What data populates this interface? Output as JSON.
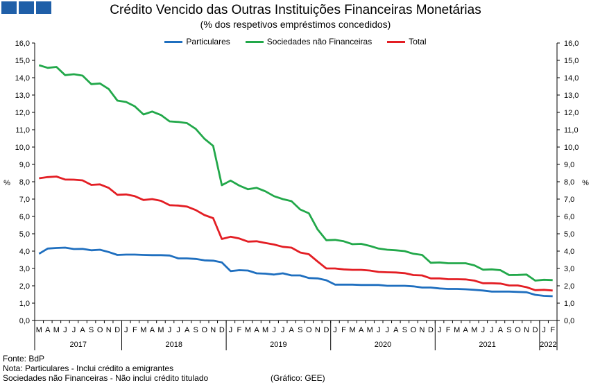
{
  "header": {
    "logo": "logo-squares",
    "title": "Crédito Vencido das Outras Instituições Financeiras Monetárias",
    "subtitle": "(% dos respetivos empréstimos concedidos)"
  },
  "footer": {
    "source": "Fonte: BdP",
    "note1": "Nota: Particulares - Inclui crédito a emigrantes",
    "note2": "Sociedades não Financeiras - Não inclui crédito titulado",
    "credit": "(Gráfico: GEE)"
  },
  "chart_data": {
    "type": "line",
    "title": "Crédito Vencido das Outras Instituições Financeiras Monetárias",
    "subtitle": "(% dos respetivos empréstimos concedidos)",
    "ylabel_left": "%",
    "ylabel_right": "%",
    "ylim": [
      0,
      16
    ],
    "yticks": [
      "0,0",
      "1,0",
      "2,0",
      "3,0",
      "4,0",
      "5,0",
      "6,0",
      "7,0",
      "8,0",
      "9,0",
      "10,0",
      "11,0",
      "12,0",
      "13,0",
      "14,0",
      "15,0",
      "16,0"
    ],
    "grid": false,
    "legend_position": "top-center",
    "month_labels": [
      "M",
      "A",
      "M",
      "J",
      "J",
      "A",
      "S",
      "O",
      "N",
      "D",
      "J",
      "F",
      "M",
      "A",
      "M",
      "J",
      "J",
      "A",
      "S",
      "O",
      "N",
      "D",
      "J",
      "F",
      "M",
      "A",
      "M",
      "J",
      "J",
      "A",
      "S",
      "O",
      "N",
      "D",
      "J",
      "F",
      "M",
      "A",
      "M",
      "J",
      "J",
      "A",
      "S",
      "O",
      "N",
      "D",
      "J",
      "F",
      "M",
      "A",
      "M",
      "J",
      "J",
      "A",
      "S",
      "O",
      "N",
      "D",
      "J",
      "F"
    ],
    "years": [
      {
        "label": "2017",
        "start": 0,
        "end": 9
      },
      {
        "label": "2018",
        "start": 10,
        "end": 21
      },
      {
        "label": "2019",
        "start": 22,
        "end": 33
      },
      {
        "label": "2020",
        "start": 34,
        "end": 45
      },
      {
        "label": "2021",
        "start": 46,
        "end": 57
      },
      {
        "label": "2022",
        "start": 58,
        "end": 59
      }
    ],
    "series": [
      {
        "name": "Particulares",
        "color": "#1f6fbf",
        "values": [
          3.85,
          4.15,
          4.18,
          4.2,
          4.12,
          4.13,
          4.05,
          4.08,
          3.95,
          3.78,
          3.8,
          3.8,
          3.78,
          3.77,
          3.77,
          3.75,
          3.58,
          3.58,
          3.55,
          3.47,
          3.45,
          3.35,
          2.85,
          2.9,
          2.88,
          2.72,
          2.7,
          2.65,
          2.72,
          2.6,
          2.6,
          2.45,
          2.43,
          2.32,
          2.07,
          2.07,
          2.07,
          2.05,
          2.05,
          2.05,
          2.0,
          2.0,
          2.0,
          1.97,
          1.9,
          1.9,
          1.85,
          1.82,
          1.82,
          1.8,
          1.77,
          1.73,
          1.67,
          1.67,
          1.67,
          1.65,
          1.63,
          1.48,
          1.42,
          1.4
        ]
      },
      {
        "name": "Sociedades não Financeiras",
        "color": "#22a84a",
        "values": [
          14.72,
          14.57,
          14.62,
          14.15,
          14.2,
          14.12,
          13.63,
          13.67,
          13.35,
          12.68,
          12.6,
          12.35,
          11.88,
          12.05,
          11.85,
          11.48,
          11.45,
          11.38,
          11.05,
          10.48,
          10.07,
          7.8,
          8.07,
          7.78,
          7.57,
          7.65,
          7.45,
          7.17,
          7.0,
          6.88,
          6.4,
          6.18,
          5.25,
          4.63,
          4.65,
          4.57,
          4.4,
          4.42,
          4.3,
          4.15,
          4.08,
          4.05,
          4.0,
          3.85,
          3.78,
          3.33,
          3.35,
          3.3,
          3.3,
          3.3,
          3.18,
          2.93,
          2.95,
          2.9,
          2.62,
          2.63,
          2.65,
          2.3,
          2.35,
          2.33
        ]
      },
      {
        "name": "Total",
        "color": "#e31e24",
        "values": [
          8.2,
          8.27,
          8.3,
          8.13,
          8.12,
          8.08,
          7.82,
          7.85,
          7.65,
          7.25,
          7.27,
          7.17,
          6.95,
          7.0,
          6.9,
          6.65,
          6.63,
          6.57,
          6.37,
          6.08,
          5.9,
          4.7,
          4.83,
          4.73,
          4.55,
          4.57,
          4.47,
          4.38,
          4.25,
          4.2,
          3.92,
          3.82,
          3.4,
          3.0,
          3.0,
          2.95,
          2.92,
          2.92,
          2.88,
          2.8,
          2.78,
          2.77,
          2.73,
          2.62,
          2.6,
          2.43,
          2.43,
          2.38,
          2.38,
          2.37,
          2.3,
          2.15,
          2.15,
          2.13,
          2.02,
          2.02,
          1.92,
          1.75,
          1.77,
          1.73
        ]
      }
    ]
  }
}
